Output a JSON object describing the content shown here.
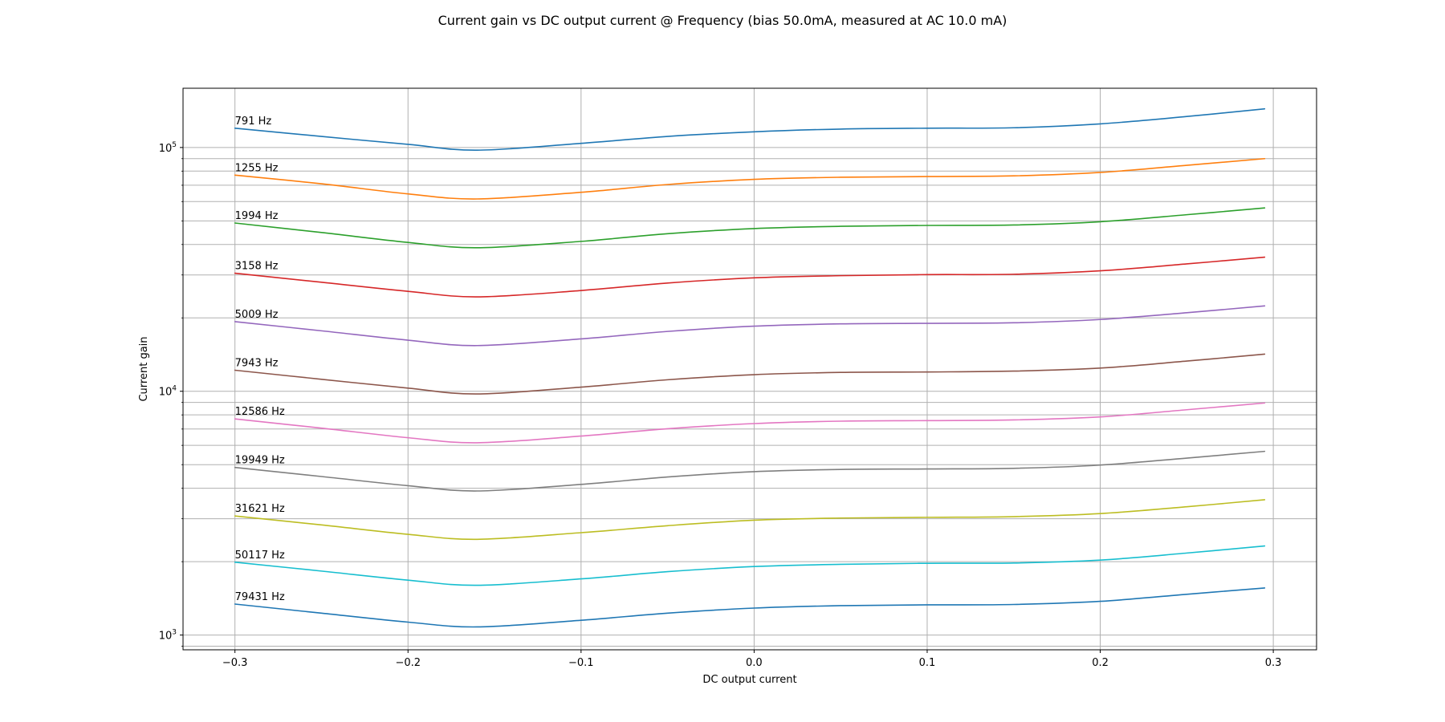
{
  "chart_data": {
    "type": "line",
    "title": "Current gain vs DC output current @ Frequency (bias 50.0mA, measured at AC 10.0 mA)",
    "xlabel": "DC output current",
    "ylabel": "Current gain",
    "yscale": "log",
    "xlim": [
      -0.33,
      0.325
    ],
    "ylim": [
      870,
      175000
    ],
    "grid": true,
    "x_ticks": [
      {
        "value": -0.3,
        "label": "−0.3"
      },
      {
        "value": -0.2,
        "label": "−0.2"
      },
      {
        "value": -0.1,
        "label": "−0.1"
      },
      {
        "value": 0.0,
        "label": "0.0"
      },
      {
        "value": 0.1,
        "label": "0.1"
      },
      {
        "value": 0.2,
        "label": "0.2"
      },
      {
        "value": 0.3,
        "label": "0.3"
      }
    ],
    "y_major_ticks": [
      {
        "value": 1000,
        "base": "10",
        "exp": "3"
      },
      {
        "value": 10000,
        "base": "10",
        "exp": "4"
      },
      {
        "value": 100000,
        "base": "10",
        "exp": "5"
      }
    ],
    "x": [
      -0.3,
      -0.25,
      -0.2,
      -0.16,
      -0.1,
      -0.05,
      0.0,
      0.05,
      0.1,
      0.15,
      0.2,
      0.25,
      0.295
    ],
    "series": [
      {
        "name": "791 Hz",
        "color": "#1f77b4",
        "values": [
          120000,
          111000,
          103000,
          97500,
          104000,
          111000,
          116000,
          119000,
          120000,
          120500,
          125000,
          134000,
          144000
        ]
      },
      {
        "name": "1255 Hz",
        "color": "#ff7f0e",
        "values": [
          77000,
          71000,
          64500,
          61500,
          65500,
          70500,
          74000,
          75500,
          76000,
          76500,
          79000,
          84500,
          90000
        ]
      },
      {
        "name": "1994 Hz",
        "color": "#2ca02c",
        "values": [
          49000,
          44800,
          40800,
          38800,
          41200,
          44300,
          46500,
          47500,
          47900,
          48100,
          49600,
          53000,
          56500
        ]
      },
      {
        "name": "3158 Hz",
        "color": "#d62728",
        "values": [
          30500,
          28000,
          25700,
          24400,
          25900,
          27800,
          29200,
          29800,
          30100,
          30200,
          31200,
          33300,
          35500
        ]
      },
      {
        "name": "5009 Hz",
        "color": "#9467bd",
        "values": [
          19300,
          17700,
          16200,
          15400,
          16400,
          17600,
          18500,
          18900,
          19000,
          19100,
          19700,
          21000,
          22400
        ]
      },
      {
        "name": "7943 Hz",
        "color": "#8c564b",
        "values": [
          12200,
          11200,
          10300,
          9750,
          10400,
          11150,
          11700,
          11950,
          12000,
          12100,
          12450,
          13300,
          14200
        ]
      },
      {
        "name": "12586 Hz",
        "color": "#e377c2",
        "values": [
          7700,
          7060,
          6450,
          6150,
          6550,
          7020,
          7370,
          7540,
          7580,
          7630,
          7850,
          8400,
          8950
        ]
      },
      {
        "name": "19949 Hz",
        "color": "#7f7f7f",
        "values": [
          4870,
          4470,
          4100,
          3900,
          4150,
          4450,
          4680,
          4780,
          4800,
          4830,
          4980,
          5320,
          5670
        ]
      },
      {
        "name": "31621 Hz",
        "color": "#bcbd22",
        "values": [
          3080,
          2830,
          2590,
          2470,
          2630,
          2810,
          2960,
          3020,
          3040,
          3060,
          3150,
          3360,
          3590
        ]
      },
      {
        "name": "50117 Hz",
        "color": "#17becf",
        "values": [
          1990,
          1830,
          1680,
          1600,
          1700,
          1820,
          1910,
          1950,
          1970,
          1975,
          2030,
          2170,
          2320
        ]
      },
      {
        "name": "79431 Hz",
        "color": "#1f77b4",
        "values": [
          1340,
          1230,
          1130,
          1080,
          1150,
          1230,
          1290,
          1320,
          1330,
          1335,
          1375,
          1470,
          1560
        ]
      }
    ]
  }
}
